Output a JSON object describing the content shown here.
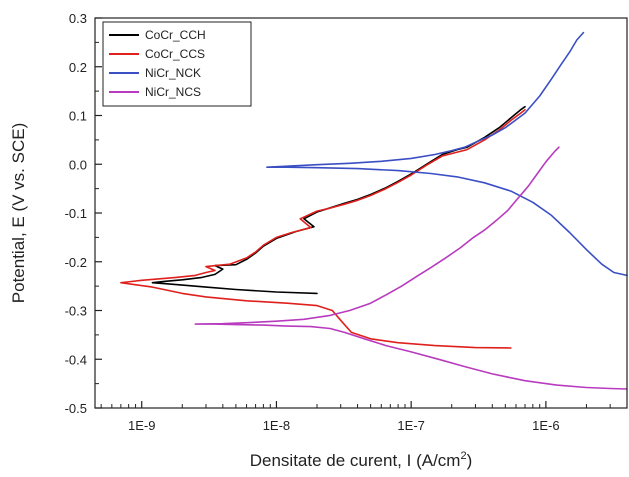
{
  "chart_data": {
    "type": "line",
    "title": "",
    "xlabel": "Densitate de curent, I (A/cm",
    "xlabel_sup": "2",
    "xlabel_close": ")",
    "ylabel": "Potential, E (V vs. SCE)",
    "x_scale": "log",
    "xlim": [
      4.5e-10,
      4e-06
    ],
    "ylim": [
      -0.5,
      0.3
    ],
    "x_ticks": [
      {
        "value": 1e-09,
        "label": "1E-9"
      },
      {
        "value": 1e-08,
        "label": "1E-8"
      },
      {
        "value": 1e-07,
        "label": "1E-7"
      },
      {
        "value": 1e-06,
        "label": "1E-6"
      }
    ],
    "y_ticks": [
      {
        "value": 0.3,
        "label": "0.3"
      },
      {
        "value": 0.2,
        "label": "0.2"
      },
      {
        "value": 0.1,
        "label": "0.1"
      },
      {
        "value": 0.0,
        "label": "0.0"
      },
      {
        "value": -0.1,
        "label": "-0.1"
      },
      {
        "value": -0.2,
        "label": "-0.2"
      },
      {
        "value": -0.3,
        "label": "-0.3"
      },
      {
        "value": -0.4,
        "label": "-0.4"
      },
      {
        "value": -0.5,
        "label": "-0.5"
      }
    ],
    "grid": false,
    "legend_position": "top-left",
    "series": [
      {
        "name": "CoCr_CCH",
        "color": "#000000",
        "points": [
          [
            2e-08,
            -0.265
          ],
          [
            1e-08,
            -0.262
          ],
          [
            5e-09,
            -0.257
          ],
          [
            3e-09,
            -0.252
          ],
          [
            2e-09,
            -0.248
          ],
          [
            1.5e-09,
            -0.245
          ],
          [
            1.2e-09,
            -0.243
          ],
          [
            1.5e-09,
            -0.24
          ],
          [
            2e-09,
            -0.237
          ],
          [
            2.8e-09,
            -0.232
          ],
          [
            3.5e-09,
            -0.226
          ],
          [
            4e-09,
            -0.215
          ],
          [
            3.5e-09,
            -0.208
          ],
          [
            5e-09,
            -0.206
          ],
          [
            6e-09,
            -0.195
          ],
          [
            7e-09,
            -0.182
          ],
          [
            8e-09,
            -0.168
          ],
          [
            1e-08,
            -0.152
          ],
          [
            1.4e-08,
            -0.138
          ],
          [
            1.9e-08,
            -0.128
          ],
          [
            1.6e-08,
            -0.112
          ],
          [
            2e-08,
            -0.098
          ],
          [
            2.6e-08,
            -0.088
          ],
          [
            3.2e-08,
            -0.08
          ],
          [
            4e-08,
            -0.072
          ],
          [
            5e-08,
            -0.062
          ],
          [
            6.5e-08,
            -0.048
          ],
          [
            8e-08,
            -0.035
          ],
          [
            1e-07,
            -0.02
          ],
          [
            1.3e-07,
            0.0
          ],
          [
            1.7e-07,
            0.02
          ],
          [
            2.2e-07,
            0.03
          ],
          [
            2.6e-07,
            0.035
          ],
          [
            3.5e-07,
            0.055
          ],
          [
            4.5e-07,
            0.075
          ],
          [
            5.5e-07,
            0.095
          ],
          [
            6.5e-07,
            0.112
          ],
          [
            7e-07,
            0.118
          ]
        ]
      },
      {
        "name": "CoCr_CCS",
        "color": "#e0201c",
        "points": [
          [
            5.5e-07,
            -0.377
          ],
          [
            3e-07,
            -0.376
          ],
          [
            1.5e-07,
            -0.372
          ],
          [
            8e-08,
            -0.366
          ],
          [
            5e-08,
            -0.358
          ],
          [
            3.6e-08,
            -0.345
          ],
          [
            3e-08,
            -0.32
          ],
          [
            2.6e-08,
            -0.3
          ],
          [
            2e-08,
            -0.29
          ],
          [
            1.2e-08,
            -0.285
          ],
          [
            6e-09,
            -0.28
          ],
          [
            3e-09,
            -0.272
          ],
          [
            2e-09,
            -0.265
          ],
          [
            1.2e-09,
            -0.252
          ],
          [
            7e-10,
            -0.243
          ],
          [
            1e-09,
            -0.238
          ],
          [
            1.8e-09,
            -0.232
          ],
          [
            2.5e-09,
            -0.228
          ],
          [
            3e-09,
            -0.222
          ],
          [
            3.5e-09,
            -0.218
          ],
          [
            3e-09,
            -0.21
          ],
          [
            4.5e-09,
            -0.205
          ],
          [
            6e-09,
            -0.192
          ],
          [
            7e-09,
            -0.18
          ],
          [
            8e-09,
            -0.166
          ],
          [
            1e-08,
            -0.15
          ],
          [
            1.3e-08,
            -0.14
          ],
          [
            1.8e-08,
            -0.13
          ],
          [
            1.5e-08,
            -0.112
          ],
          [
            2e-08,
            -0.096
          ],
          [
            2.5e-08,
            -0.09
          ],
          [
            3.2e-08,
            -0.082
          ],
          [
            4e-08,
            -0.074
          ],
          [
            5e-08,
            -0.064
          ],
          [
            6.5e-08,
            -0.05
          ],
          [
            8e-08,
            -0.037
          ],
          [
            1e-07,
            -0.022
          ],
          [
            1.3e-07,
            -0.002
          ],
          [
            1.7e-07,
            0.017
          ],
          [
            2.2e-07,
            0.025
          ],
          [
            2.6e-07,
            0.03
          ],
          [
            3.5e-07,
            0.05
          ],
          [
            4.5e-07,
            0.07
          ],
          [
            5.5e-07,
            0.09
          ],
          [
            6.5e-07,
            0.105
          ],
          [
            7e-07,
            0.112
          ]
        ]
      },
      {
        "name": "NiCr_NCK",
        "color": "#3b4fc4",
        "points": [
          [
            4e-06,
            -0.228
          ],
          [
            3.2e-06,
            -0.222
          ],
          [
            2.6e-06,
            -0.205
          ],
          [
            2e-06,
            -0.175
          ],
          [
            1.5e-06,
            -0.14
          ],
          [
            1.1e-06,
            -0.105
          ],
          [
            8e-07,
            -0.078
          ],
          [
            5.5e-07,
            -0.055
          ],
          [
            3.5e-07,
            -0.038
          ],
          [
            2.2e-07,
            -0.026
          ],
          [
            1.4e-07,
            -0.019
          ],
          [
            8e-08,
            -0.013
          ],
          [
            4e-08,
            -0.009
          ],
          [
            2e-08,
            -0.007
          ],
          [
            1.2e-08,
            -0.006
          ],
          [
            8.5e-09,
            -0.006
          ],
          [
            1.2e-08,
            -0.004
          ],
          [
            2e-08,
            -0.001
          ],
          [
            3.5e-08,
            0.002
          ],
          [
            6e-08,
            0.006
          ],
          [
            1e-07,
            0.012
          ],
          [
            1.5e-07,
            0.02
          ],
          [
            2e-07,
            0.028
          ],
          [
            2.5e-07,
            0.035
          ],
          [
            3e-07,
            0.045
          ],
          [
            4e-07,
            0.06
          ],
          [
            5e-07,
            0.075
          ],
          [
            7e-07,
            0.105
          ],
          [
            9e-07,
            0.14
          ],
          [
            1.1e-06,
            0.175
          ],
          [
            1.3e-06,
            0.205
          ],
          [
            1.5e-06,
            0.23
          ],
          [
            1.7e-06,
            0.255
          ],
          [
            1.9e-06,
            0.27
          ]
        ]
      },
      {
        "name": "NiCr_NCS",
        "color": "#b83bbf",
        "points": [
          [
            4e-06,
            -0.461
          ],
          [
            3e-06,
            -0.46
          ],
          [
            2e-06,
            -0.458
          ],
          [
            1.2e-06,
            -0.453
          ],
          [
            7e-07,
            -0.444
          ],
          [
            4e-07,
            -0.43
          ],
          [
            2.5e-07,
            -0.415
          ],
          [
            1.6e-07,
            -0.4
          ],
          [
            1e-07,
            -0.385
          ],
          [
            6.5e-08,
            -0.372
          ],
          [
            4.5e-08,
            -0.358
          ],
          [
            3.2e-08,
            -0.345
          ],
          [
            2.5e-08,
            -0.337
          ],
          [
            1.8e-08,
            -0.333
          ],
          [
            1.2e-08,
            -0.332
          ],
          [
            8e-09,
            -0.33
          ],
          [
            5e-09,
            -0.329
          ],
          [
            3.5e-09,
            -0.328
          ],
          [
            2.5e-09,
            -0.328
          ],
          [
            4e-09,
            -0.327
          ],
          [
            6e-09,
            -0.325
          ],
          [
            1e-08,
            -0.322
          ],
          [
            1.6e-08,
            -0.318
          ],
          [
            2.5e-08,
            -0.31
          ],
          [
            3.5e-08,
            -0.3
          ],
          [
            5e-08,
            -0.285
          ],
          [
            6.5e-08,
            -0.268
          ],
          [
            8.5e-08,
            -0.25
          ],
          [
            1.1e-07,
            -0.23
          ],
          [
            1.4e-07,
            -0.212
          ],
          [
            1.8e-07,
            -0.192
          ],
          [
            2.3e-07,
            -0.172
          ],
          [
            2.9e-07,
            -0.15
          ],
          [
            3.5e-07,
            -0.135
          ],
          [
            4.3e-07,
            -0.115
          ],
          [
            5.2e-07,
            -0.095
          ],
          [
            6.2e-07,
            -0.07
          ],
          [
            7.4e-07,
            -0.045
          ],
          [
            8.6e-07,
            -0.02
          ],
          [
            1e-06,
            0.005
          ],
          [
            1.15e-06,
            0.025
          ],
          [
            1.25e-06,
            0.035
          ]
        ]
      }
    ]
  }
}
